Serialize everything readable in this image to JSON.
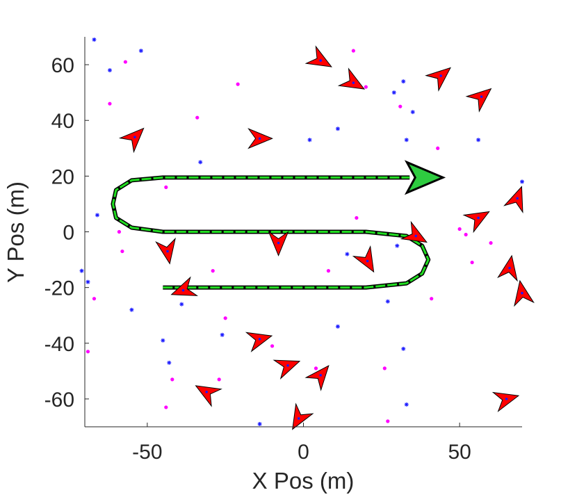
{
  "chart_data": {
    "type": "scatter",
    "title": "",
    "xlabel": "X Pos (m)",
    "ylabel": "Y Pos (m)",
    "xlim": [
      -70,
      70
    ],
    "ylim": [
      -70,
      70
    ],
    "xticks": [
      -50,
      0,
      50
    ],
    "yticks": [
      60,
      40,
      20,
      0,
      -20,
      -40,
      -60
    ],
    "xtick_labels": [
      "-50",
      "0",
      "50"
    ],
    "ytick_labels": [
      "60",
      "40",
      "20",
      "0",
      "-20",
      "-40",
      "-60"
    ],
    "grid": false,
    "colors": {
      "trajectory_true": "#000000",
      "trajectory_est": "#22dd22",
      "heading_arrow": "#ff0000",
      "estimate_arrow": "#2ecc40",
      "blue_points": "#1a1aff",
      "magenta_points": "#ff00ff",
      "axis": "#262626"
    },
    "series": [
      {
        "kind": "trajectory",
        "x": [
          -45,
          20,
          33,
          38,
          40,
          38,
          33,
          20,
          -45,
          -55,
          -60,
          -61,
          -60,
          -55,
          -45,
          34
        ],
        "y": [
          -20,
          -20,
          -18.5,
          -15,
          -10,
          -5,
          -1.5,
          0,
          0,
          1.5,
          5,
          10,
          15,
          18.5,
          19.5,
          19.5
        ]
      },
      {
        "kind": "heading_markers",
        "x": [
          5.5,
          16,
          44,
          57,
          -54,
          -14,
          56,
          68.5,
          36,
          -43.5,
          -8,
          20.5,
          66,
          70,
          -38.5,
          -14,
          -5,
          5.5,
          -31,
          -1.5,
          65
        ],
        "y": [
          61.5,
          53.5,
          56,
          48.5,
          34,
          33.5,
          5,
          12,
          -1.5,
          -7,
          -4,
          -10.5,
          -13,
          -22,
          -21,
          -38.5,
          -48,
          -51.5,
          -57.5,
          -67,
          -60
        ],
        "angle_deg": [
          -30,
          -30,
          40,
          40,
          45,
          0,
          30,
          70,
          -30,
          -80,
          -90,
          -60,
          80,
          100,
          -160,
          15,
          20,
          50,
          150,
          -120,
          15
        ]
      },
      {
        "kind": "landmarks_blue",
        "x": [
          -67,
          -62,
          -52,
          16,
          29,
          32,
          35,
          11,
          2,
          33,
          56,
          70,
          -33,
          -66,
          -71,
          -69,
          -55,
          -39,
          -45,
          -43,
          -26,
          -14,
          14,
          11,
          32,
          30,
          33,
          27
        ],
        "y": [
          69,
          58,
          65,
          55,
          50,
          54,
          43,
          37,
          33,
          33,
          33,
          18,
          25,
          6,
          -14,
          -18,
          -28,
          -26,
          -39,
          -47,
          -37,
          -69,
          -8,
          -34,
          -42,
          -5,
          -62,
          -25
        ],
        "marker": "*"
      },
      {
        "kind": "landmarks_magenta",
        "x": [
          -57,
          -62,
          -34,
          -21,
          16,
          20,
          31,
          43,
          -44,
          50,
          -58,
          -59,
          17,
          52,
          60,
          54,
          41,
          8,
          -29,
          -67,
          -69,
          -25,
          -27,
          -42,
          -44,
          -10,
          -40,
          4,
          26,
          27
        ],
        "y": [
          61,
          46,
          41,
          53,
          65,
          52,
          45,
          30,
          16,
          1,
          -7,
          0,
          5,
          -1,
          -4,
          -11,
          -24,
          -14,
          -14,
          -24,
          -43,
          -31,
          -53,
          -53,
          -63,
          -41,
          -20,
          -49,
          -49,
          -68
        ]
      }
    ]
  }
}
